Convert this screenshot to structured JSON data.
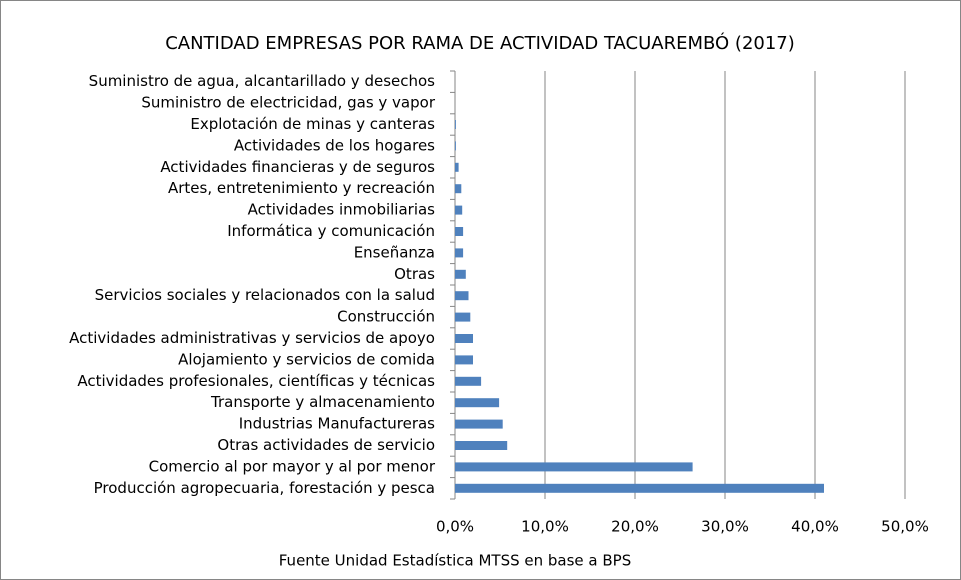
{
  "chart_data": {
    "type": "hbar",
    "title": "CANTIDAD EMPRESAS POR RAMA DE ACTIVIDAD TACUAREMBÓ (2017)",
    "source": "Fuente Unidad Estadística MTSS en base a BPS",
    "categories": [
      "Suministro de agua, alcantarillado y desechos",
      "Suministro de electricidad, gas y vapor",
      "Explotación de minas y canteras",
      "Actividades de los hogares",
      "Actividades financieras y de seguros",
      "Artes, entretenimiento y recreación",
      "Actividades inmobiliarias",
      "Informática y comunicación",
      "Enseñanza",
      "Otras",
      "Servicios sociales y relacionados con la salud",
      "Construcción",
      "Actividades administrativas y servicios de apoyo",
      "Alojamiento y servicios de comida",
      "Actividades profesionales, científicas y técnicas",
      "Transporte y almacenamiento",
      "Industrias Manufactureras",
      "Otras actividades de servicio",
      "Comercio al por mayor y al por menor",
      "Producción agropecuaria, forestación y pesca"
    ],
    "values": [
      0.0,
      0.0,
      0.1,
      0.1,
      0.4,
      0.7,
      0.8,
      0.9,
      0.9,
      1.2,
      1.5,
      1.7,
      2.0,
      2.0,
      2.9,
      4.9,
      5.3,
      5.8,
      26.4,
      41.0
    ],
    "color": "#4f81bd",
    "xlim": [
      0,
      50
    ],
    "xticks": [
      {
        "value": 0,
        "label": "0,0%"
      },
      {
        "value": 10,
        "label": "10,0%"
      },
      {
        "value": 20,
        "label": "20,0%"
      },
      {
        "value": 30,
        "label": "30,0%"
      },
      {
        "value": 40,
        "label": "40,0%"
      },
      {
        "value": 50,
        "label": "50,0%"
      }
    ],
    "grid": true
  }
}
